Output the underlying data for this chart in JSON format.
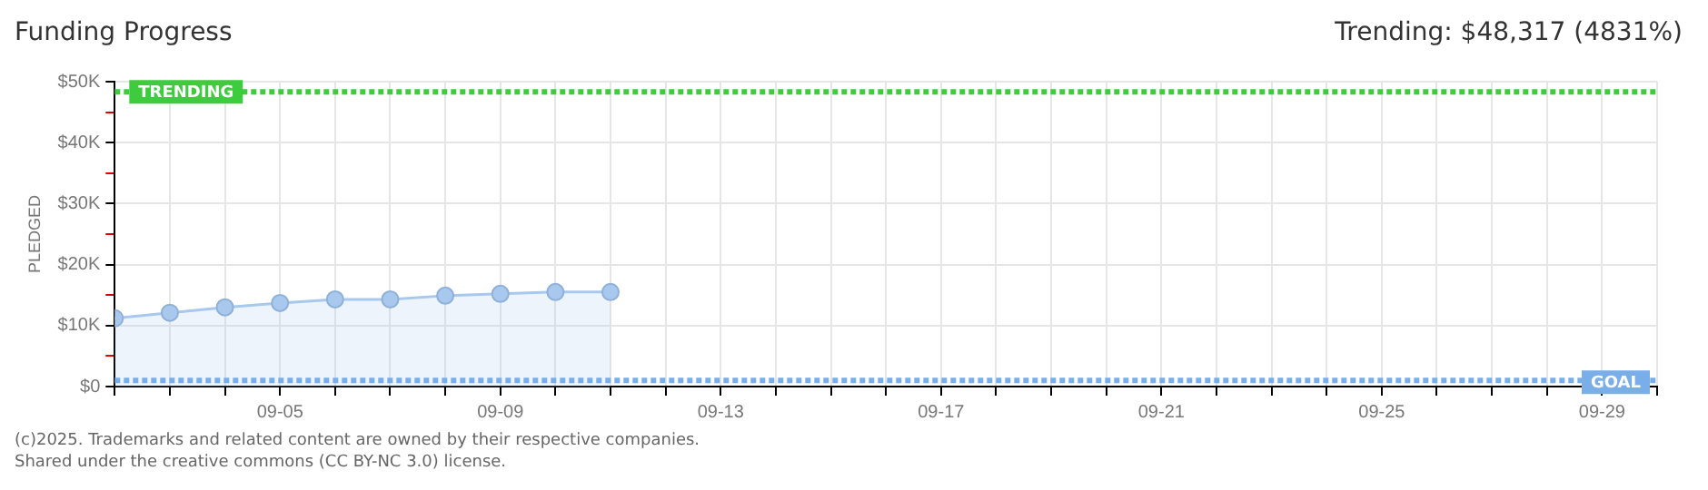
{
  "chart_data": {
    "type": "area",
    "title": "Funding Progress",
    "subtitle": "Trending: $48,317 (4831%)",
    "ylabel": "PLEDGED",
    "x": [
      "--09-02",
      "--09-03",
      "--09-04",
      "--09-05",
      "--09-06",
      "--09-07",
      "--09-08",
      "--09-09",
      "--09-10",
      "--09-11"
    ],
    "series": [
      {
        "color": "#a8c8ee",
        "values": [
          11200,
          12100,
          13000,
          13700,
          14300,
          14300,
          14900,
          15200,
          15500,
          15500
        ]
      }
    ],
    "xlim": [
      "--09-02",
      "--09-30"
    ],
    "xticks": [
      {
        "value": "--09-02",
        "label": null
      },
      {
        "value": "--09-03",
        "label": null
      },
      {
        "value": "--09-04",
        "label": null
      },
      {
        "value": "--09-05",
        "label": "09-05"
      },
      {
        "value": "--09-06",
        "label": null
      },
      {
        "value": "--09-07",
        "label": null
      },
      {
        "value": "--09-08",
        "label": null
      },
      {
        "value": "--09-09",
        "label": "09-09"
      },
      {
        "value": "--09-10",
        "label": null
      },
      {
        "value": "--09-11",
        "label": null
      },
      {
        "value": "--09-12",
        "label": null
      },
      {
        "value": "--09-13",
        "label": "09-13"
      },
      {
        "value": "--09-14",
        "label": null
      },
      {
        "value": "--09-15",
        "label": null
      },
      {
        "value": "--09-16",
        "label": null
      },
      {
        "value": "--09-17",
        "label": "09-17"
      },
      {
        "value": "--09-18",
        "label": null
      },
      {
        "value": "--09-19",
        "label": null
      },
      {
        "value": "--09-20",
        "label": null
      },
      {
        "value": "--09-21",
        "label": "09-21"
      },
      {
        "value": "--09-22",
        "label": null
      },
      {
        "value": "--09-23",
        "label": null
      },
      {
        "value": "--09-24",
        "label": null
      },
      {
        "value": "--09-25",
        "label": "09-25"
      },
      {
        "value": "--09-26",
        "label": null
      },
      {
        "value": "--09-27",
        "label": null
      },
      {
        "value": "--09-28",
        "label": null
      },
      {
        "value": "--09-29",
        "label": "09-29"
      },
      {
        "value": "--09-30",
        "label": null
      }
    ],
    "ylim": [
      0,
      50000
    ],
    "yticks": [
      {
        "value": 0,
        "label": "$0"
      },
      {
        "value": 5000,
        "label": null
      },
      {
        "value": 10000,
        "label": "$10K"
      },
      {
        "value": 15000,
        "label": null
      },
      {
        "value": 20000,
        "label": "$20K"
      },
      {
        "value": 25000,
        "label": null
      },
      {
        "value": 30000,
        "label": "$30K"
      },
      {
        "value": 35000,
        "label": null
      },
      {
        "value": 40000,
        "label": "$40K"
      },
      {
        "value": 45000,
        "label": null
      },
      {
        "value": 50000,
        "label": "$50K"
      }
    ],
    "ref_lines": [
      {
        "axis": "y",
        "value": 48317,
        "label": "TRENDING",
        "color": "#3dcc3d",
        "line_style": "dotted"
      },
      {
        "axis": "y",
        "value": 1000,
        "label": "GOAL",
        "color": "#7aaee8",
        "line_style": "dotted"
      }
    ],
    "grid": true,
    "marker": "circle",
    "legend": false,
    "annotations": [
      "(c)2025. Trademarks and related content are owned by their respective companies.",
      "Shared under the creative commons (CC BY-NC 3.0) license."
    ]
  }
}
